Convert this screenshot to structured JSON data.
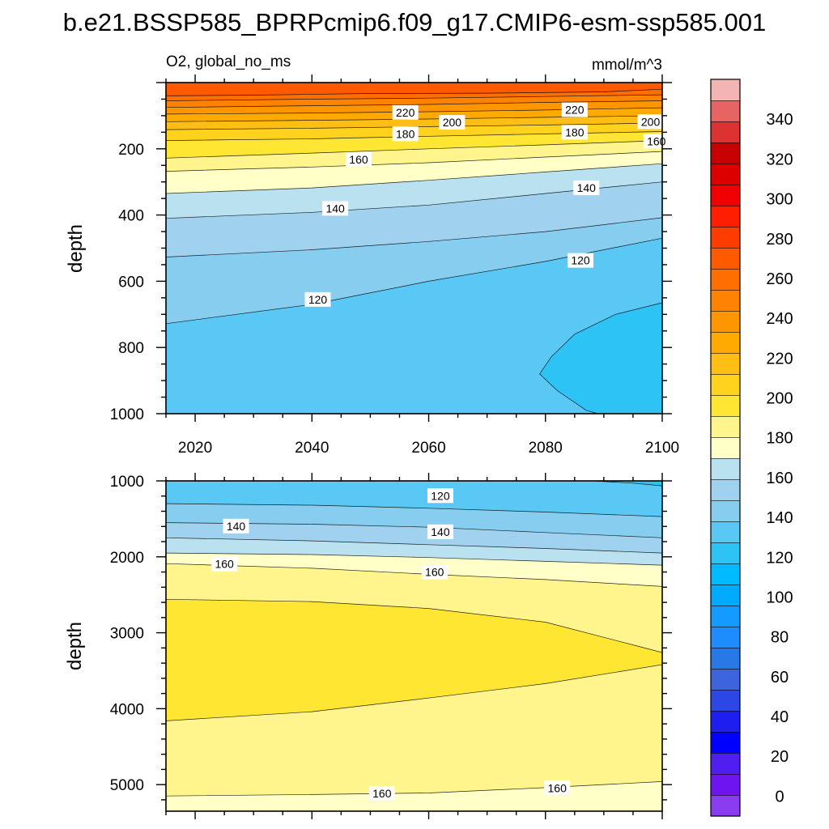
{
  "title": "b.e21.BSSP585_BPRPcmip6.f09_g17.CMIP6-esm-ssp585.001",
  "colors": [
    "#8c3cf0",
    "#6e14f0",
    "#501ef0",
    "#0000ff",
    "#1e1ef0",
    "#2d46e6",
    "#3c64dc",
    "#2878e6",
    "#1e8cff",
    "#149bff",
    "#00aaff",
    "#00bbff",
    "#2dc3f5",
    "#5ac8f5",
    "#87cdf0",
    "#a0d2f0",
    "#bae1f0",
    "#ffffc8",
    "#fff58c",
    "#ffe632",
    "#ffd21e",
    "#ffbe14",
    "#ffaa00",
    "#ff9600",
    "#ff8200",
    "#ff6e00",
    "#ff5a00",
    "#ff3c00",
    "#ff1e00",
    "#f00000",
    "#dc0000",
    "#c80000",
    "#dc3232",
    "#e66464",
    "#f5b4b4"
  ],
  "chart_data": [
    {
      "type": "heatmap",
      "subtitle_left": "O2, global_no_ms",
      "subtitle_right": "mmol/m^3",
      "ylabel": "depth",
      "xlabel": "",
      "xlim": [
        2015,
        2100
      ],
      "ylim": [
        0,
        1000
      ],
      "y_reversed": true,
      "xticks": [
        2020,
        2040,
        2060,
        2080,
        2100
      ],
      "yticks": [
        200,
        400,
        600,
        800,
        1000
      ],
      "contour_lines": [
        {
          "level": 240,
          "points": [
            [
              2015,
              40
            ],
            [
              2030,
              38
            ],
            [
              2050,
              33
            ],
            [
              2070,
              32
            ],
            [
              2090,
              28
            ],
            [
              2100,
              20
            ]
          ]
        },
        {
          "level": 230,
          "points": [
            [
              2015,
              55
            ],
            [
              2040,
              50
            ],
            [
              2060,
              47
            ],
            [
              2080,
              42
            ],
            [
              2100,
              37
            ]
          ]
        },
        {
          "level": 220,
          "points": [
            [
              2015,
              75
            ],
            [
              2040,
              70
            ],
            [
              2060,
              66
            ],
            [
              2080,
              60
            ],
            [
              2100,
              55
            ]
          ]
        },
        {
          "level": 210,
          "points": [
            [
              2015,
              95
            ],
            [
              2040,
              92
            ],
            [
              2060,
              88
            ],
            [
              2080,
              83
            ],
            [
              2100,
              76
            ]
          ]
        },
        {
          "level": 200,
          "points": [
            [
              2015,
              118
            ],
            [
              2040,
              114
            ],
            [
              2060,
              110
            ],
            [
              2080,
              105
            ],
            [
              2100,
              100
            ]
          ]
        },
        {
          "level": 190,
          "points": [
            [
              2015,
              142
            ],
            [
              2040,
              138
            ],
            [
              2060,
              133
            ],
            [
              2080,
              128
            ],
            [
              2100,
              122
            ]
          ]
        },
        {
          "level": 180,
          "points": [
            [
              2015,
              175
            ],
            [
              2040,
              170
            ],
            [
              2060,
              162
            ],
            [
              2080,
              155
            ],
            [
              2100,
              148
            ]
          ]
        },
        {
          "level": 170,
          "points": [
            [
              2015,
              228
            ],
            [
              2040,
              213
            ],
            [
              2060,
              200
            ],
            [
              2080,
              188
            ],
            [
              2100,
              175
            ]
          ]
        },
        {
          "level": 160,
          "points": [
            [
              2015,
              268
            ],
            [
              2040,
              255
            ],
            [
              2060,
              242
            ],
            [
              2080,
              225
            ],
            [
              2100,
              208
            ]
          ]
        },
        {
          "level": 150,
          "points": [
            [
              2015,
              335
            ],
            [
              2040,
              318
            ],
            [
              2060,
              295
            ],
            [
              2080,
              270
            ],
            [
              2100,
              245
            ]
          ]
        },
        {
          "level": 140,
          "points": [
            [
              2015,
              410
            ],
            [
              2040,
              392
            ],
            [
              2060,
              370
            ],
            [
              2080,
              335
            ],
            [
              2100,
              300
            ]
          ]
        },
        {
          "level": 130,
          "points": [
            [
              2015,
              527
            ],
            [
              2040,
              505
            ],
            [
              2060,
              480
            ],
            [
              2080,
              450
            ],
            [
              2100,
              408
            ]
          ]
        },
        {
          "level": 120,
          "points": [
            [
              2015,
              728
            ],
            [
              2040,
              670
            ],
            [
              2060,
              600
            ],
            [
              2080,
              540
            ],
            [
              2100,
              470
            ]
          ]
        },
        {
          "level": 110,
          "points": [
            [
              2100,
              665
            ],
            [
              2092,
              700
            ],
            [
              2085,
              760
            ],
            [
              2081,
              828
            ],
            [
              2079,
              880
            ],
            [
              2082,
              930
            ],
            [
              2087,
              990
            ],
            [
              2089,
              1000
            ]
          ]
        }
      ],
      "contour_labels": [
        {
          "value": "220",
          "x": 2056,
          "y": 90
        },
        {
          "value": "200",
          "x": 2064,
          "y": 120
        },
        {
          "value": "180",
          "x": 2056,
          "y": 155
        },
        {
          "value": "160",
          "x": 2048,
          "y": 232
        },
        {
          "value": "140",
          "x": 2044,
          "y": 380
        },
        {
          "value": "120",
          "x": 2041,
          "y": 655
        },
        {
          "value": "220",
          "x": 2085,
          "y": 82
        },
        {
          "value": "180",
          "x": 2085,
          "y": 150
        },
        {
          "value": "200",
          "x": 2098,
          "y": 118
        },
        {
          "value": "160",
          "x": 2099,
          "y": 177
        },
        {
          "value": "140",
          "x": 2087,
          "y": 318
        },
        {
          "value": "120",
          "x": 2086,
          "y": 537
        }
      ]
    },
    {
      "type": "heatmap",
      "subtitle_left": "",
      "subtitle_right": "",
      "ylabel": "depth",
      "xlabel": "",
      "xlim": [
        2015,
        2100
      ],
      "ylim": [
        1000,
        5350
      ],
      "y_reversed": true,
      "xticks": [
        2020,
        2040,
        2060,
        2080,
        2100
      ],
      "yticks": [
        1000,
        2000,
        3000,
        4000,
        5000
      ],
      "contour_lines": [
        {
          "level": 110,
          "points": [
            [
              2088,
              1000
            ],
            [
              2095,
              1030
            ],
            [
              2100,
              1065
            ]
          ]
        },
        {
          "level": 120,
          "points": [
            [
              2015,
              1300
            ],
            [
              2040,
              1320
            ],
            [
              2060,
              1360
            ],
            [
              2080,
              1410
            ],
            [
              2100,
              1470
            ]
          ]
        },
        {
          "level": 130,
          "points": [
            [
              2015,
              1550
            ],
            [
              2040,
              1570
            ],
            [
              2060,
              1610
            ],
            [
              2080,
              1680
            ],
            [
              2100,
              1750
            ]
          ]
        },
        {
          "level": 140,
          "points": [
            [
              2015,
              1750
            ],
            [
              2040,
              1790
            ],
            [
              2060,
              1840
            ],
            [
              2080,
              1890
            ],
            [
              2100,
              1950
            ]
          ]
        },
        {
          "level": 150,
          "points": [
            [
              2015,
              1950
            ],
            [
              2040,
              1970
            ],
            [
              2060,
              2010
            ],
            [
              2080,
              2060
            ],
            [
              2100,
              2110
            ]
          ]
        },
        {
          "level": 160,
          "points": [
            [
              2015,
              2090
            ],
            [
              2040,
              2150
            ],
            [
              2060,
              2230
            ],
            [
              2080,
              2300
            ],
            [
              2100,
              2390
            ]
          ]
        },
        {
          "level": 170,
          "points": [
            [
              2015,
              2560
            ],
            [
              2040,
              2590
            ],
            [
              2060,
              2680
            ],
            [
              2080,
              2860
            ],
            [
              2096,
              3180
            ],
            [
              2100,
              3260
            ],
            [
              2100,
              3420
            ],
            [
              2080,
              3670
            ],
            [
              2060,
              3860
            ],
            [
              2040,
              4040
            ],
            [
              2015,
              4160
            ]
          ]
        },
        {
          "level": 160,
          "points": [
            [
              2015,
              5150
            ],
            [
              2040,
              5130
            ],
            [
              2060,
              5110
            ],
            [
              2080,
              5040
            ],
            [
              2100,
              4960
            ]
          ]
        }
      ],
      "contour_labels": [
        {
          "value": "120",
          "x": 2062,
          "y": 1195
        },
        {
          "value": "140",
          "x": 2027,
          "y": 1595
        },
        {
          "value": "140",
          "x": 2062,
          "y": 1670
        },
        {
          "value": "160",
          "x": 2025,
          "y": 2095
        },
        {
          "value": "160",
          "x": 2061,
          "y": 2200
        },
        {
          "value": "160",
          "x": 2052,
          "y": 5115
        },
        {
          "value": "160",
          "x": 2082,
          "y": 5045
        }
      ]
    },
    {
      "type": "colorbar",
      "ticks": [
        0,
        20,
        40,
        60,
        80,
        100,
        120,
        140,
        160,
        180,
        200,
        220,
        240,
        260,
        280,
        300,
        320,
        340
      ],
      "range": [
        -10,
        360
      ],
      "step": 10
    }
  ]
}
